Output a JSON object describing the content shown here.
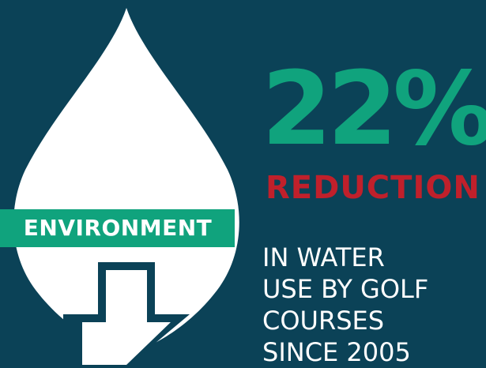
{
  "badge": {
    "label": "ENVIRONMENT"
  },
  "statistic": {
    "value": "22%",
    "label": "REDUCTION",
    "description_lines": [
      "IN WATER",
      "USE BY GOLF",
      "COURSES",
      "SINCE 2005"
    ]
  },
  "icons": {
    "drop": "water-drop-icon",
    "arrow": "down-arrow-icon"
  },
  "colors": {
    "background": "#0b4257",
    "accent_green": "#10a37d",
    "accent_red": "#c0202b",
    "drop": "#ffffff"
  }
}
